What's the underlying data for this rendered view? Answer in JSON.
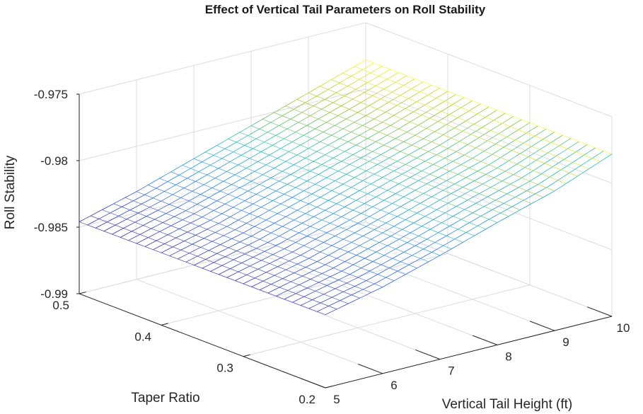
{
  "chart_data": {
    "type": "surface",
    "title": "Effect of Vertical Tail Parameters on Roll Stability",
    "xlabel": "Vertical Tail Height (ft)",
    "ylabel": "Taper Ratio",
    "zlabel": "Roll Stability",
    "xlim": [
      5,
      10
    ],
    "ylim": [
      0.2,
      0.5
    ],
    "zlim": [
      -0.99,
      -0.975
    ],
    "x_ticks": [
      "5",
      "6",
      "7",
      "8",
      "9",
      "10"
    ],
    "y_ticks": [
      "0.2",
      "0.3",
      "0.4",
      "0.5"
    ],
    "z_ticks": [
      "-0.99",
      "-0.985",
      "-0.98",
      "-0.975"
    ],
    "grid": true,
    "colormap": "parula",
    "surface_x": [
      5,
      6,
      7,
      8,
      9,
      10
    ],
    "surface_y": [
      0.2,
      0.5
    ],
    "surface_z": [
      [
        -0.9845,
        -0.9835,
        -0.9822,
        -0.9808,
        -0.9795,
        -0.9778
      ],
      [
        -0.9846,
        -0.9834,
        -0.982,
        -0.9806,
        -0.9792,
        -0.9778
      ]
    ],
    "colors": {
      "low": "#3e26a8",
      "mid": "#19c3b6",
      "high": "#f9fb15",
      "grid": "#dcdcdc",
      "axis": "#262626"
    }
  }
}
